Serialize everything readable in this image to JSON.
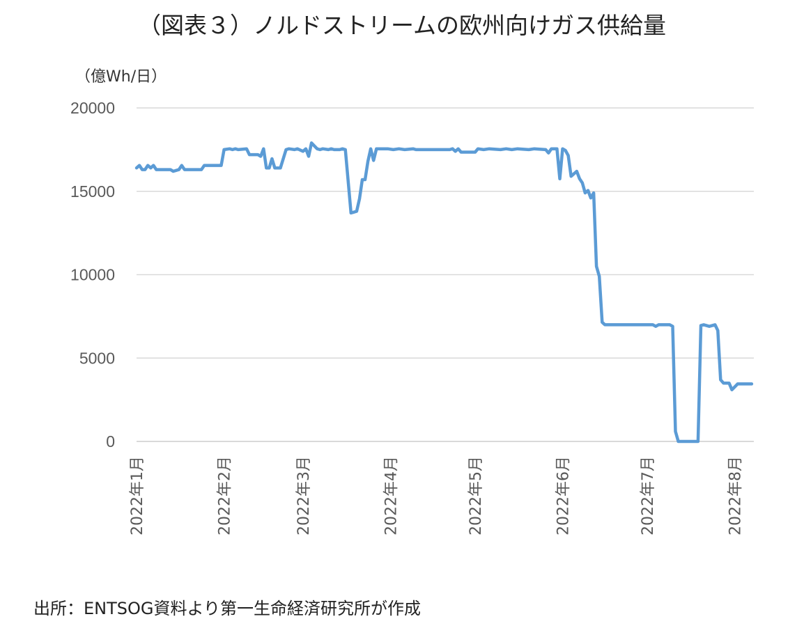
{
  "chart_data": {
    "type": "line",
    "title": "（図表３）ノルドストリームの欧州向けガス供給量",
    "ylabel": "（億Wh/日）",
    "xlabel": "",
    "ylim": [
      0,
      20000
    ],
    "yticks": [
      "20000",
      "15000",
      "10000",
      "5000",
      "0"
    ],
    "xlim": [
      "2022-01-01",
      "2022-08-07"
    ],
    "xticks": [
      {
        "date": "2022-01-01",
        "label": "2022年1月"
      },
      {
        "date": "2022-02-01",
        "label": "2022年2月"
      },
      {
        "date": "2022-03-01",
        "label": "2022年3月"
      },
      {
        "date": "2022-04-01",
        "label": "2022年4月"
      },
      {
        "date": "2022-05-01",
        "label": "2022年5月"
      },
      {
        "date": "2022-06-01",
        "label": "2022年6月"
      },
      {
        "date": "2022-07-01",
        "label": "2022年7月"
      },
      {
        "date": "2022-08-01",
        "label": "2022年8月"
      }
    ],
    "grid": true,
    "line_color": "#5b9bd5",
    "grid_color": "#d9d9d9",
    "series": [
      {
        "points": [
          [
            "2022-01-01",
            16400
          ],
          [
            "2022-01-02",
            16550
          ],
          [
            "2022-01-03",
            16300
          ],
          [
            "2022-01-04",
            16300
          ],
          [
            "2022-01-05",
            16550
          ],
          [
            "2022-01-06",
            16400
          ],
          [
            "2022-01-07",
            16550
          ],
          [
            "2022-01-08",
            16300
          ],
          [
            "2022-01-13",
            16300
          ],
          [
            "2022-01-14",
            16200
          ],
          [
            "2022-01-16",
            16300
          ],
          [
            "2022-01-17",
            16550
          ],
          [
            "2022-01-18",
            16300
          ],
          [
            "2022-01-24",
            16300
          ],
          [
            "2022-01-25",
            16550
          ],
          [
            "2022-01-31",
            16550
          ],
          [
            "2022-02-01",
            17500
          ],
          [
            "2022-02-03",
            17550
          ],
          [
            "2022-02-04",
            17500
          ],
          [
            "2022-02-05",
            17550
          ],
          [
            "2022-02-06",
            17500
          ],
          [
            "2022-02-09",
            17550
          ],
          [
            "2022-02-10",
            17200
          ],
          [
            "2022-02-13",
            17200
          ],
          [
            "2022-02-14",
            17100
          ],
          [
            "2022-02-15",
            17550
          ],
          [
            "2022-02-16",
            16400
          ],
          [
            "2022-02-17",
            16400
          ],
          [
            "2022-02-18",
            16950
          ],
          [
            "2022-02-19",
            16400
          ],
          [
            "2022-02-21",
            16400
          ],
          [
            "2022-02-23",
            17500
          ],
          [
            "2022-02-24",
            17550
          ],
          [
            "2022-02-26",
            17500
          ],
          [
            "2022-02-27",
            17550
          ],
          [
            "2022-03-01",
            17400
          ],
          [
            "2022-03-02",
            17550
          ],
          [
            "2022-03-03",
            17100
          ],
          [
            "2022-03-04",
            17900
          ],
          [
            "2022-03-06",
            17550
          ],
          [
            "2022-03-07",
            17500
          ],
          [
            "2022-03-08",
            17550
          ],
          [
            "2022-03-10",
            17500
          ],
          [
            "2022-03-11",
            17550
          ],
          [
            "2022-03-12",
            17500
          ],
          [
            "2022-03-14",
            17500
          ],
          [
            "2022-03-15",
            17550
          ],
          [
            "2022-03-16",
            17500
          ],
          [
            "2022-03-18",
            13700
          ],
          [
            "2022-03-20",
            13800
          ],
          [
            "2022-03-21",
            14550
          ],
          [
            "2022-03-22",
            15700
          ],
          [
            "2022-03-23",
            15700
          ],
          [
            "2022-03-24",
            16800
          ],
          [
            "2022-03-25",
            17550
          ],
          [
            "2022-03-26",
            16850
          ],
          [
            "2022-03-27",
            17550
          ],
          [
            "2022-03-31",
            17550
          ],
          [
            "2022-04-02",
            17500
          ],
          [
            "2022-04-04",
            17550
          ],
          [
            "2022-04-06",
            17500
          ],
          [
            "2022-04-09",
            17550
          ],
          [
            "2022-04-10",
            17500
          ],
          [
            "2022-04-22",
            17500
          ],
          [
            "2022-04-23",
            17550
          ],
          [
            "2022-04-24",
            17400
          ],
          [
            "2022-04-25",
            17550
          ],
          [
            "2022-04-26",
            17350
          ],
          [
            "2022-05-01",
            17350
          ],
          [
            "2022-05-02",
            17550
          ],
          [
            "2022-05-04",
            17500
          ],
          [
            "2022-05-06",
            17550
          ],
          [
            "2022-05-10",
            17500
          ],
          [
            "2022-05-12",
            17550
          ],
          [
            "2022-05-14",
            17500
          ],
          [
            "2022-05-16",
            17550
          ],
          [
            "2022-05-20",
            17500
          ],
          [
            "2022-05-22",
            17550
          ],
          [
            "2022-05-26",
            17500
          ],
          [
            "2022-05-27",
            17300
          ],
          [
            "2022-05-28",
            17550
          ],
          [
            "2022-05-30",
            17550
          ],
          [
            "2022-05-31",
            15750
          ],
          [
            "2022-06-01",
            17550
          ],
          [
            "2022-06-02",
            17450
          ],
          [
            "2022-06-03",
            17150
          ],
          [
            "2022-06-04",
            15900
          ],
          [
            "2022-06-06",
            16200
          ],
          [
            "2022-06-07",
            15750
          ],
          [
            "2022-06-08",
            15500
          ],
          [
            "2022-06-09",
            14900
          ],
          [
            "2022-06-10",
            15050
          ],
          [
            "2022-06-11",
            14600
          ],
          [
            "2022-06-12",
            14900
          ],
          [
            "2022-06-13",
            10500
          ],
          [
            "2022-06-14",
            9900
          ],
          [
            "2022-06-15",
            7150
          ],
          [
            "2022-06-16",
            7000
          ],
          [
            "2022-07-03",
            7000
          ],
          [
            "2022-07-04",
            6900
          ],
          [
            "2022-07-05",
            7000
          ],
          [
            "2022-07-09",
            7000
          ],
          [
            "2022-07-10",
            6900
          ],
          [
            "2022-07-11",
            600
          ],
          [
            "2022-07-12",
            0
          ],
          [
            "2022-07-19",
            0
          ],
          [
            "2022-07-20",
            6950
          ],
          [
            "2022-07-21",
            7000
          ],
          [
            "2022-07-23",
            6900
          ],
          [
            "2022-07-25",
            7000
          ],
          [
            "2022-07-26",
            6650
          ],
          [
            "2022-07-27",
            3700
          ],
          [
            "2022-07-28",
            3500
          ],
          [
            "2022-07-30",
            3500
          ],
          [
            "2022-07-31",
            3100
          ],
          [
            "2022-08-02",
            3450
          ],
          [
            "2022-08-07",
            3450
          ]
        ]
      }
    ]
  },
  "source": "出所：ENTSOG資料より第一生命経済研究所が作成"
}
